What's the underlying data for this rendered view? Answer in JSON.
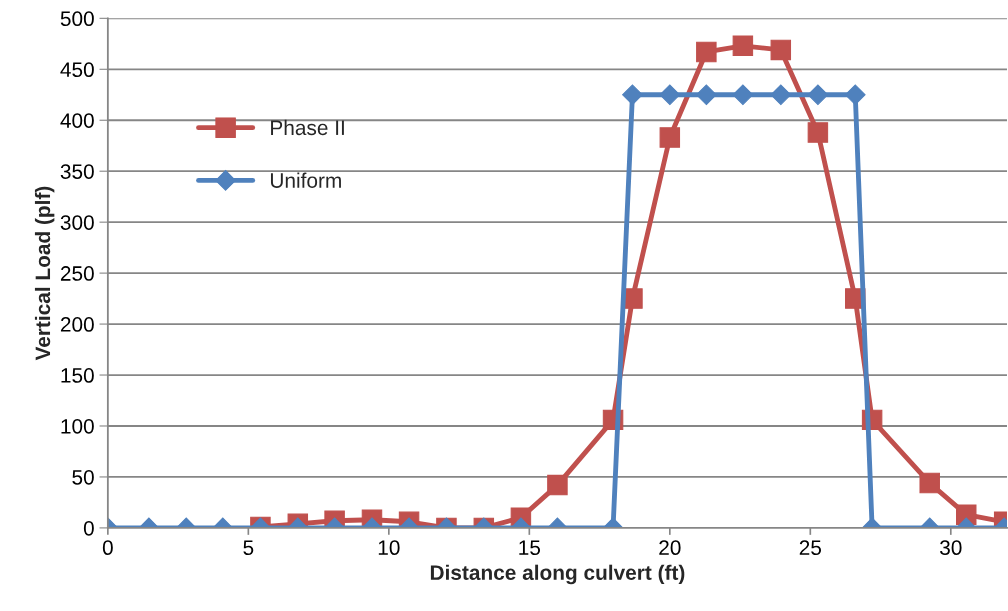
{
  "chart_data": {
    "type": "line",
    "xlabel": "Distance along culvert (ft)",
    "ylabel": "Vertical Load (plf)",
    "xlim": [
      0,
      32
    ],
    "xticks": [
      0,
      5,
      10,
      15,
      20,
      25,
      30
    ],
    "ylim": [
      0,
      500
    ],
    "yticks": [
      0,
      50,
      100,
      150,
      200,
      250,
      300,
      350,
      400,
      450,
      500
    ],
    "grid": "y",
    "legend": "left",
    "line_style": "solid",
    "series": [
      {
        "name": "Phase II",
        "color": "#c0504d",
        "marker": "square",
        "x": [
          5.43,
          6.76,
          8.07,
          9.4,
          10.72,
          12.05,
          13.38,
          14.7,
          16.0,
          17.98,
          18.67,
          20.0,
          21.3,
          22.6,
          23.95,
          25.27,
          26.6,
          27.2,
          29.25,
          30.55,
          31.9
        ],
        "values": [
          1,
          4,
          7,
          8,
          6,
          0,
          0,
          10,
          42,
          106,
          225,
          383,
          467,
          473,
          469,
          388,
          225,
          106,
          44,
          13,
          6
        ]
      },
      {
        "name": "Uniform",
        "color": "#4f81bd",
        "marker": "diamond",
        "x": [
          0,
          1.46,
          2.79,
          4.09,
          5.43,
          6.76,
          8.07,
          9.4,
          10.72,
          12.05,
          13.38,
          14.7,
          16.0,
          17.98,
          18.67,
          20.0,
          21.3,
          22.6,
          23.95,
          25.27,
          26.6,
          27.2,
          29.25,
          30.55,
          31.9
        ],
        "values": [
          0,
          0,
          0,
          0,
          0,
          0,
          0,
          0,
          0,
          0,
          0,
          0,
          0,
          0,
          425,
          425,
          425,
          425,
          425,
          425,
          425,
          0,
          0,
          0,
          0
        ]
      }
    ]
  }
}
